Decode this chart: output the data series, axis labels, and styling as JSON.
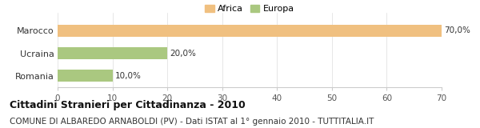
{
  "categories": [
    "Marocco",
    "Ucraina",
    "Romania"
  ],
  "values": [
    70.0,
    20.0,
    10.0
  ],
  "colors": [
    "#f0c080",
    "#aac880",
    "#aac880"
  ],
  "bar_labels": [
    "70,0%",
    "20,0%",
    "10,0%"
  ],
  "legend_labels": [
    "Africa",
    "Europa"
  ],
  "legend_colors": [
    "#f0c080",
    "#aac880"
  ],
  "xlim": [
    0,
    70
  ],
  "xticks": [
    0,
    10,
    20,
    30,
    40,
    50,
    60,
    70
  ],
  "title": "Cittadini Stranieri per Cittadinanza - 2010",
  "subtitle": "COMUNE DI ALBAREDO ARNABOLDI (PV) - Dati ISTAT al 1° gennaio 2010 - TUTTITALIA.IT",
  "title_fontsize": 9,
  "subtitle_fontsize": 7.5,
  "background_color": "#ffffff"
}
